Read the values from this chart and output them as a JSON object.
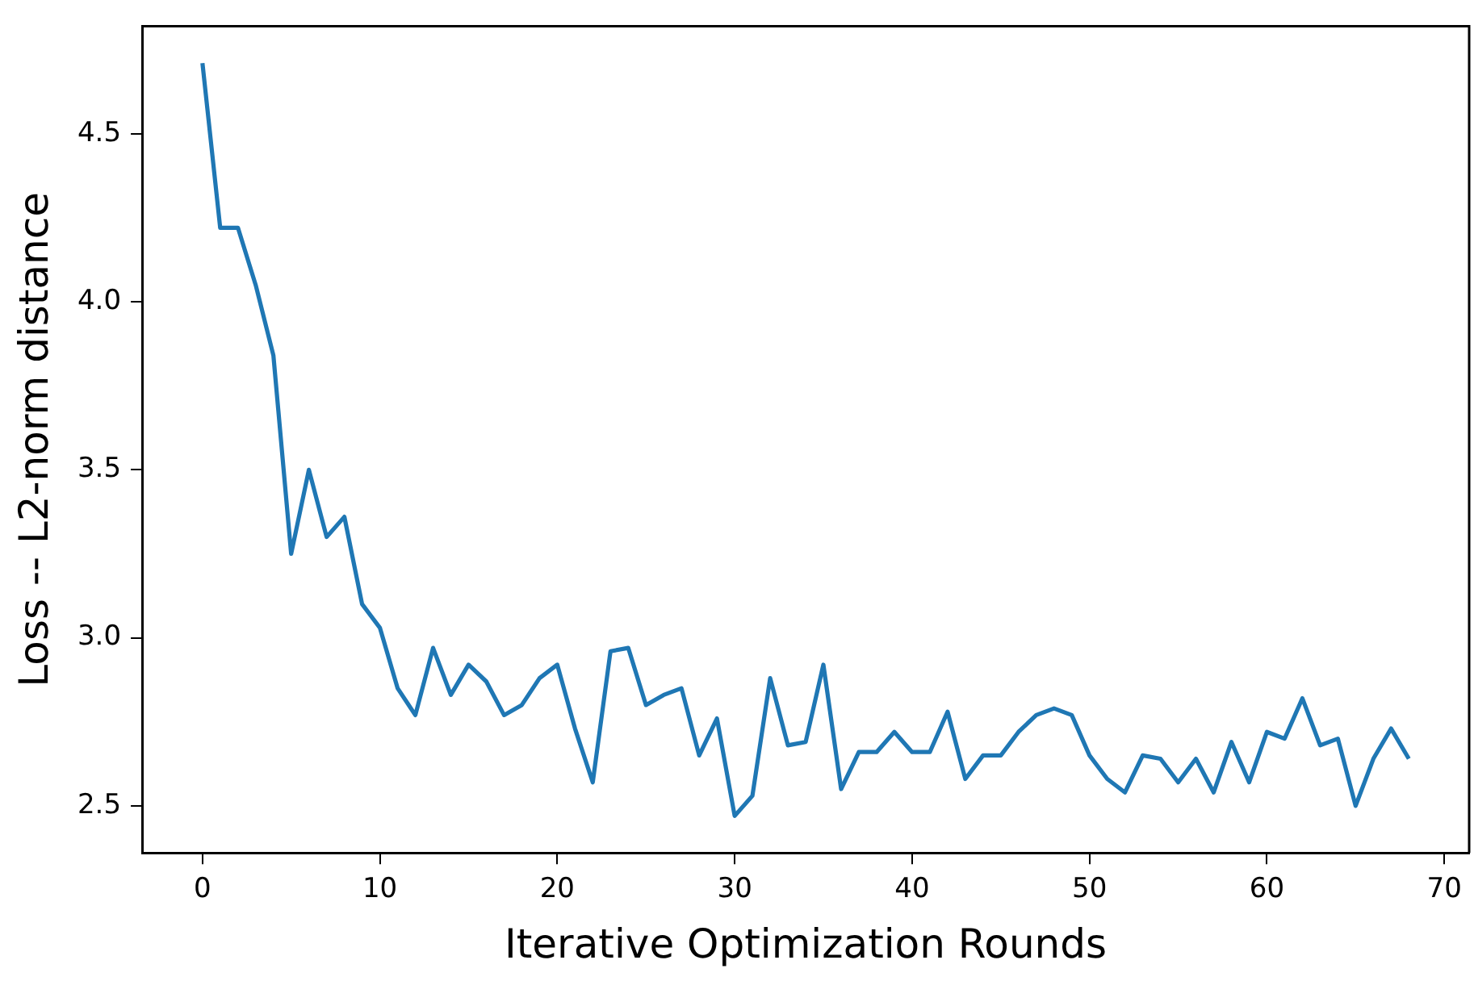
{
  "chart_data": {
    "type": "line",
    "xlabel": "Iterative Optimization Rounds",
    "ylabel": "Loss -- L2-norm distance",
    "x": [
      0,
      1,
      2,
      3,
      4,
      5,
      6,
      7,
      8,
      9,
      10,
      11,
      12,
      13,
      14,
      15,
      16,
      17,
      18,
      19,
      20,
      21,
      22,
      23,
      24,
      25,
      26,
      27,
      28,
      29,
      30,
      31,
      32,
      33,
      34,
      35,
      36,
      37,
      38,
      39,
      40,
      41,
      42,
      43,
      44,
      45,
      46,
      47,
      48,
      49,
      50,
      51,
      52,
      53,
      54,
      55,
      56,
      57,
      58,
      59,
      60,
      61,
      62,
      63,
      64,
      65,
      66,
      67,
      68
    ],
    "series": [
      {
        "color": "#1f77b4",
        "values": [
          4.71,
          4.22,
          4.22,
          4.05,
          3.84,
          3.25,
          3.5,
          3.3,
          3.36,
          3.1,
          3.03,
          2.85,
          2.77,
          2.97,
          2.83,
          2.92,
          2.87,
          2.77,
          2.8,
          2.88,
          2.92,
          2.73,
          2.57,
          2.96,
          2.97,
          2.8,
          2.83,
          2.85,
          2.65,
          2.76,
          2.47,
          2.53,
          2.88,
          2.68,
          2.69,
          2.92,
          2.55,
          2.66,
          2.66,
          2.72,
          2.66,
          2.66,
          2.78,
          2.58,
          2.65,
          2.65,
          2.72,
          2.77,
          2.79,
          2.77,
          2.65,
          2.58,
          2.54,
          2.65,
          2.64,
          2.57,
          2.64,
          2.54,
          2.69,
          2.57,
          2.72,
          2.7,
          2.82,
          2.68,
          2.7,
          2.5,
          2.64,
          2.73,
          2.64
        ]
      }
    ],
    "xlim": [
      -3.4,
      71.4
    ],
    "ylim": [
      2.36,
      4.82
    ],
    "xticks": [
      0,
      10,
      20,
      30,
      40,
      50,
      60,
      70
    ],
    "yticks": [
      {
        "value": 2.5,
        "label": "2.5"
      },
      {
        "value": 3,
        "label": "3.0"
      },
      {
        "value": 3.5,
        "label": "3.5"
      },
      {
        "value": 4,
        "label": "4.0"
      },
      {
        "value": 4.5,
        "label": "4.5"
      }
    ],
    "grid": false,
    "legend": false,
    "marker": "none",
    "line_style": "solid"
  }
}
